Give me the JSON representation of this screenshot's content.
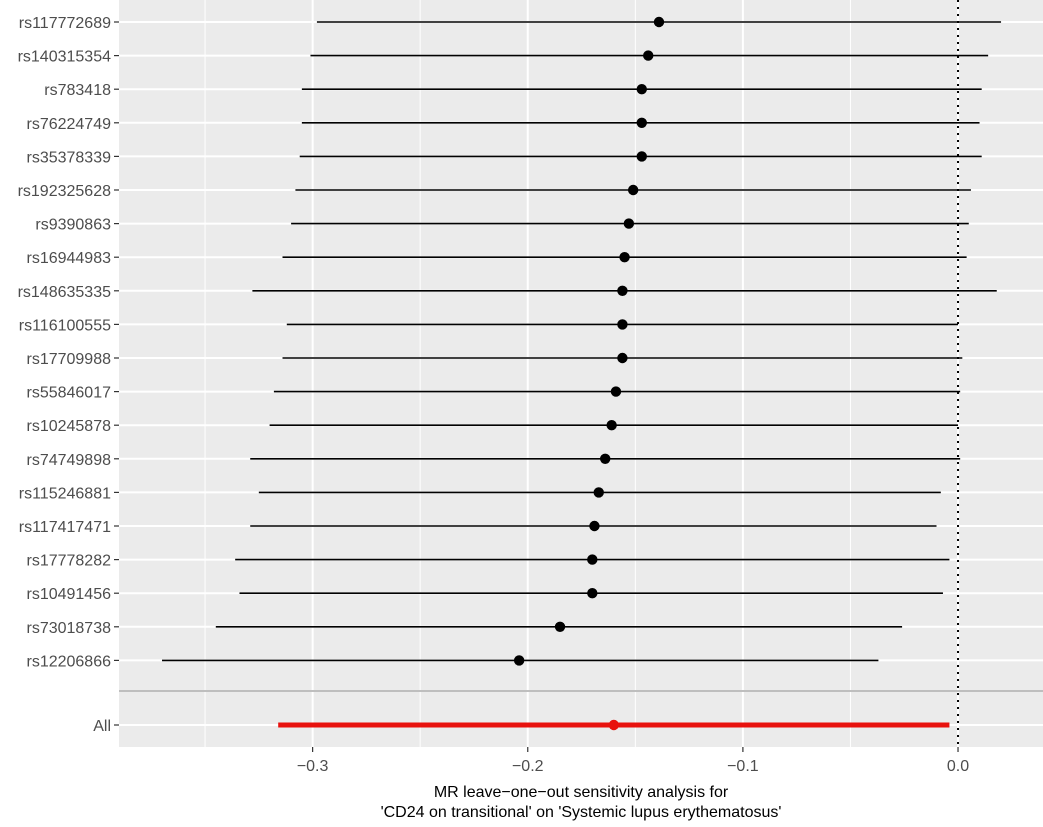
{
  "chart_data": {
    "type": "forest",
    "xlabel_line1": "MR leave−one−out sensitivity analysis for",
    "xlabel_line2": "'CD24 on transitional' on 'Systemic lupus erythematosus'",
    "ylabel": "",
    "xlim": [
      -0.39,
      0.0395
    ],
    "x_ticks": [
      -0.3,
      -0.2,
      -0.1,
      0.0
    ],
    "x_tick_labels": [
      "−0.3",
      "−0.2",
      "−0.1",
      "0.0"
    ],
    "reference_line": 0.0,
    "grid": true,
    "rows": [
      {
        "label": "rs117772689",
        "estimate": -0.139,
        "lower": -0.298,
        "upper": 0.02
      },
      {
        "label": "rs140315354",
        "estimate": -0.144,
        "lower": -0.301,
        "upper": 0.014
      },
      {
        "label": "rs783418",
        "estimate": -0.147,
        "lower": -0.305,
        "upper": 0.011
      },
      {
        "label": "rs76224749",
        "estimate": -0.147,
        "lower": -0.305,
        "upper": 0.01
      },
      {
        "label": "rs35378339",
        "estimate": -0.147,
        "lower": -0.306,
        "upper": 0.011
      },
      {
        "label": "rs192325628",
        "estimate": -0.151,
        "lower": -0.308,
        "upper": 0.006
      },
      {
        "label": "rs9390863",
        "estimate": -0.153,
        "lower": -0.31,
        "upper": 0.005
      },
      {
        "label": "rs16944983",
        "estimate": -0.155,
        "lower": -0.314,
        "upper": 0.004
      },
      {
        "label": "rs148635335",
        "estimate": -0.156,
        "lower": -0.328,
        "upper": 0.018
      },
      {
        "label": "rs116100555",
        "estimate": -0.156,
        "lower": -0.312,
        "upper": 0.0
      },
      {
        "label": "rs17709988",
        "estimate": -0.156,
        "lower": -0.314,
        "upper": 0.002
      },
      {
        "label": "rs55846017",
        "estimate": -0.159,
        "lower": -0.318,
        "upper": 0.001
      },
      {
        "label": "rs10245878",
        "estimate": -0.161,
        "lower": -0.32,
        "upper": 0.0
      },
      {
        "label": "rs74749898",
        "estimate": -0.164,
        "lower": -0.329,
        "upper": 0.001
      },
      {
        "label": "rs115246881",
        "estimate": -0.167,
        "lower": -0.325,
        "upper": -0.008
      },
      {
        "label": "rs117417471",
        "estimate": -0.169,
        "lower": -0.329,
        "upper": -0.01
      },
      {
        "label": "rs17778282",
        "estimate": -0.17,
        "lower": -0.336,
        "upper": -0.004
      },
      {
        "label": "rs10491456",
        "estimate": -0.17,
        "lower": -0.334,
        "upper": -0.007
      },
      {
        "label": "rs73018738",
        "estimate": -0.185,
        "lower": -0.345,
        "upper": -0.026
      },
      {
        "label": "rs12206866",
        "estimate": -0.204,
        "lower": -0.37,
        "upper": -0.037
      }
    ],
    "overall": {
      "label": "All",
      "estimate": -0.16,
      "lower": -0.316,
      "upper": -0.004
    },
    "colors": {
      "panel": "#ebebeb",
      "grid": "#ffffff",
      "points": "#000000",
      "overall": "#e8120e",
      "separator": "#bebebe"
    }
  }
}
